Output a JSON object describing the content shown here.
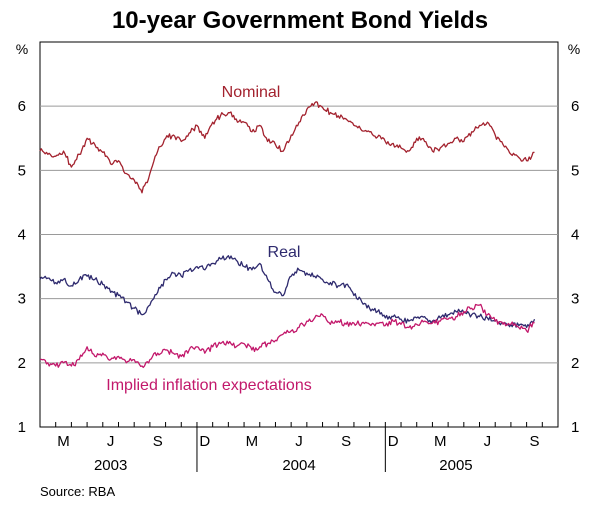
{
  "chart_data": {
    "type": "line",
    "title": "10-year Government Bond Yields",
    "ylabel_left": "%",
    "ylabel_right": "%",
    "ylim": [
      1,
      7
    ],
    "yticks": [
      1,
      2,
      3,
      4,
      5,
      6
    ],
    "grid": true,
    "x_month_labels": [
      "M",
      "J",
      "S",
      "D",
      "M",
      "J",
      "S",
      "D",
      "M",
      "J",
      "S"
    ],
    "x_month_positions": [
      3.5,
      6.5,
      9.5,
      12.5,
      15.5,
      18.5,
      21.5,
      24.5,
      27.5,
      30.5,
      33.5
    ],
    "x_year_labels": [
      {
        "label": "2003",
        "center": 6.5
      },
      {
        "label": "2004",
        "center": 18.5
      },
      {
        "label": "2005",
        "center": 28.5
      }
    ],
    "x_year_dividers": [
      12,
      24
    ],
    "xlim": [
      2,
      35
    ],
    "source": "Source: RBA",
    "series": [
      {
        "name": "Nominal",
        "color": "#a3222e",
        "x": [
          2.0,
          2.5,
          3.0,
          3.5,
          4.0,
          4.5,
          5.0,
          5.5,
          6.0,
          6.5,
          7.0,
          7.5,
          8.0,
          8.5,
          9.0,
          9.5,
          10.0,
          10.5,
          11.0,
          11.5,
          12.0,
          12.5,
          13.0,
          13.5,
          14.0,
          14.5,
          15.0,
          15.5,
          16.0,
          16.5,
          17.0,
          17.5,
          18.0,
          18.5,
          19.0,
          19.5,
          20.0,
          20.5,
          21.0,
          21.5,
          22.0,
          22.5,
          23.0,
          23.5,
          24.0,
          24.5,
          25.0,
          25.5,
          26.0,
          26.5,
          27.0,
          27.5,
          28.0,
          28.5,
          29.0,
          29.5,
          30.0,
          30.5,
          31.0,
          31.5,
          32.0,
          32.5,
          33.0,
          33.5
        ],
        "values": [
          5.3,
          5.25,
          5.22,
          5.3,
          5.05,
          5.25,
          5.5,
          5.4,
          5.28,
          5.1,
          5.15,
          4.95,
          4.85,
          4.65,
          4.95,
          5.3,
          5.5,
          5.55,
          5.45,
          5.58,
          5.7,
          5.5,
          5.75,
          5.85,
          5.9,
          5.8,
          5.75,
          5.6,
          5.7,
          5.45,
          5.4,
          5.3,
          5.55,
          5.75,
          5.95,
          6.05,
          5.98,
          5.9,
          5.85,
          5.8,
          5.7,
          5.62,
          5.6,
          5.52,
          5.45,
          5.42,
          5.35,
          5.3,
          5.5,
          5.45,
          5.3,
          5.35,
          5.42,
          5.5,
          5.45,
          5.6,
          5.7,
          5.75,
          5.55,
          5.4,
          5.25,
          5.2,
          5.15,
          5.28
        ]
      },
      {
        "name": "Real",
        "color": "#2e2a6e",
        "x": [
          2.0,
          2.5,
          3.0,
          3.5,
          4.0,
          4.5,
          5.0,
          5.5,
          6.0,
          6.5,
          7.0,
          7.5,
          8.0,
          8.5,
          9.0,
          9.5,
          10.0,
          10.5,
          11.0,
          11.5,
          12.0,
          12.5,
          13.0,
          13.5,
          14.0,
          14.5,
          15.0,
          15.5,
          16.0,
          16.5,
          17.0,
          17.5,
          18.0,
          18.5,
          19.0,
          19.5,
          20.0,
          20.5,
          21.0,
          21.5,
          22.0,
          22.5,
          23.0,
          23.5,
          24.0,
          24.5,
          25.0,
          25.5,
          26.0,
          26.5,
          27.0,
          27.5,
          28.0,
          28.5,
          29.0,
          29.5,
          30.0,
          30.5,
          31.0,
          31.5,
          32.0,
          32.5,
          33.0,
          33.5
        ],
        "values": [
          3.3,
          3.32,
          3.25,
          3.3,
          3.2,
          3.3,
          3.35,
          3.3,
          3.22,
          3.1,
          3.05,
          2.95,
          2.85,
          2.75,
          2.9,
          3.1,
          3.3,
          3.4,
          3.35,
          3.45,
          3.5,
          3.45,
          3.55,
          3.62,
          3.67,
          3.6,
          3.5,
          3.45,
          3.55,
          3.3,
          3.1,
          3.05,
          3.35,
          3.45,
          3.4,
          3.35,
          3.3,
          3.25,
          3.2,
          3.22,
          3.05,
          2.95,
          2.85,
          2.8,
          2.7,
          2.72,
          2.68,
          2.65,
          2.7,
          2.72,
          2.65,
          2.7,
          2.75,
          2.8,
          2.78,
          2.75,
          2.72,
          2.7,
          2.65,
          2.62,
          2.6,
          2.58,
          2.55,
          2.68
        ]
      },
      {
        "name": "Implied inflation expectations",
        "color": "#c2186b",
        "x": [
          2.0,
          2.5,
          3.0,
          3.5,
          4.0,
          4.5,
          5.0,
          5.5,
          6.0,
          6.5,
          7.0,
          7.5,
          8.0,
          8.5,
          9.0,
          9.5,
          10.0,
          10.5,
          11.0,
          11.5,
          12.0,
          12.5,
          13.0,
          13.5,
          14.0,
          14.5,
          15.0,
          15.5,
          16.0,
          16.5,
          17.0,
          17.5,
          18.0,
          18.5,
          19.0,
          19.5,
          20.0,
          20.5,
          21.0,
          21.5,
          22.0,
          22.5,
          23.0,
          23.5,
          24.0,
          24.5,
          25.0,
          25.5,
          26.0,
          26.5,
          27.0,
          27.5,
          28.0,
          28.5,
          29.0,
          29.5,
          30.0,
          30.5,
          31.0,
          31.5,
          32.0,
          32.5,
          33.0,
          33.5
        ],
        "values": [
          2.05,
          2.0,
          1.95,
          2.0,
          1.95,
          2.05,
          2.25,
          2.1,
          2.15,
          2.05,
          2.1,
          2.0,
          2.05,
          1.95,
          2.05,
          2.15,
          2.2,
          2.15,
          2.1,
          2.2,
          2.25,
          2.15,
          2.25,
          2.3,
          2.3,
          2.25,
          2.3,
          2.2,
          2.25,
          2.3,
          2.35,
          2.45,
          2.5,
          2.55,
          2.65,
          2.7,
          2.75,
          2.6,
          2.65,
          2.6,
          2.62,
          2.62,
          2.6,
          2.62,
          2.58,
          2.65,
          2.6,
          2.55,
          2.6,
          2.65,
          2.62,
          2.65,
          2.68,
          2.72,
          2.8,
          2.85,
          2.9,
          2.75,
          2.65,
          2.6,
          2.6,
          2.55,
          2.5,
          2.62
        ]
      }
    ],
    "series_labels": [
      "Nominal",
      "Real",
      "Implied inflation expectations"
    ]
  }
}
